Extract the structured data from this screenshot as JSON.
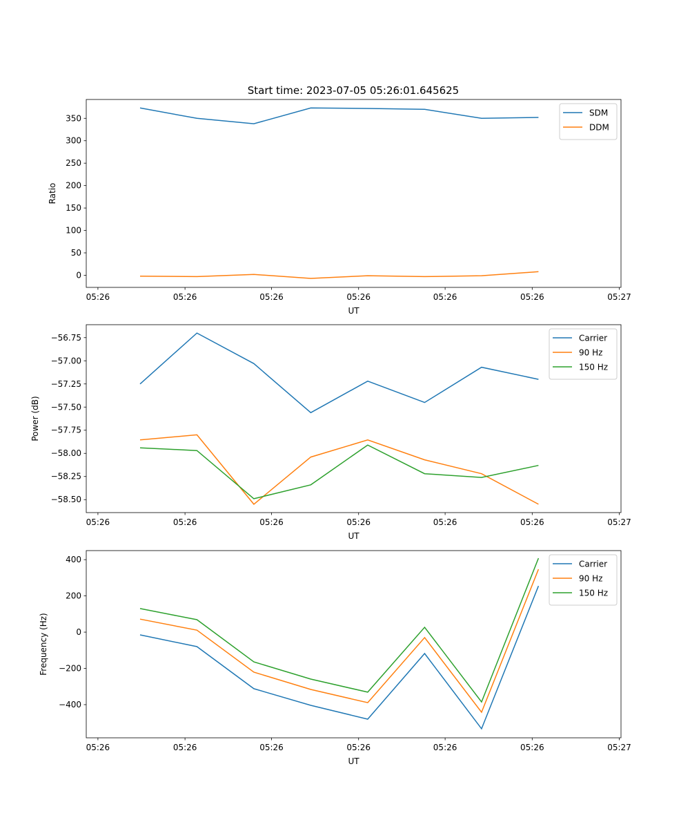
{
  "title": "Start time: 2023-07-05 05:26:01.645625",
  "chart_data": [
    {
      "type": "line",
      "xlabel": "UT",
      "ylabel": "Ratio",
      "x": [
        0,
        1,
        2,
        3,
        4,
        5,
        6,
        7
      ],
      "xlim": [
        -0.945,
        8.45
      ],
      "xticks": [
        -0.74,
        0.79,
        2.31,
        3.84,
        5.36,
        6.89,
        8.42
      ],
      "xticklabels": [
        "05:26",
        "05:26",
        "05:26",
        "05:26",
        "05:26",
        "05:26",
        "05:27"
      ],
      "ylim": [
        -27,
        392
      ],
      "yticks": [
        0,
        50,
        100,
        150,
        200,
        250,
        300,
        350
      ],
      "yticklabels": [
        "0",
        "50",
        "100",
        "150",
        "200",
        "250",
        "300",
        "350"
      ],
      "legend": "top-right",
      "series": [
        {
          "name": "SDM",
          "color": "#1f77b4",
          "values": [
            373,
            350,
            338,
            373,
            372,
            370,
            350,
            352
          ]
        },
        {
          "name": "DDM",
          "color": "#ff7f0e",
          "values": [
            -2,
            -3,
            2,
            -7,
            -1,
            -3,
            -1,
            8
          ]
        }
      ]
    },
    {
      "type": "line",
      "xlabel": "UT",
      "ylabel": "Power (dB)",
      "x": [
        0,
        1,
        2,
        3,
        4,
        5,
        6,
        7
      ],
      "xlim": [
        -0.945,
        8.45
      ],
      "xticks": [
        -0.74,
        0.79,
        2.31,
        3.84,
        5.36,
        6.89,
        8.42
      ],
      "xticklabels": [
        "05:26",
        "05:26",
        "05:26",
        "05:26",
        "05:26",
        "05:26",
        "05:27"
      ],
      "ylim": [
        -58.64,
        -56.61
      ],
      "yticks": [
        -58.5,
        -58.25,
        -58.0,
        -57.75,
        -57.5,
        -57.25,
        -57.0,
        -56.75
      ],
      "yticklabels": [
        "−58.50",
        "−58.25",
        "−58.00",
        "−57.75",
        "−57.50",
        "−57.25",
        "−57.00",
        "−56.75"
      ],
      "legend": "top-right",
      "series": [
        {
          "name": "Carrier",
          "color": "#1f77b4",
          "values": [
            -57.25,
            -56.7,
            -57.03,
            -57.56,
            -57.22,
            -57.45,
            -57.07,
            -57.2
          ]
        },
        {
          "name": "90 Hz",
          "color": "#ff7f0e",
          "values": [
            -57.855,
            -57.8,
            -58.55,
            -58.04,
            -57.855,
            -58.07,
            -58.22,
            -58.55
          ]
        },
        {
          "name": "150 Hz",
          "color": "#2ca02c",
          "values": [
            -57.94,
            -57.97,
            -58.49,
            -58.34,
            -57.91,
            -58.22,
            -58.26,
            -58.13
          ]
        }
      ]
    },
    {
      "type": "line",
      "xlabel": "UT",
      "ylabel": "Frequency (Hz)",
      "x": [
        0,
        1,
        2,
        3,
        4,
        5,
        6,
        7
      ],
      "xlim": [
        -0.945,
        8.45
      ],
      "xticks": [
        -0.74,
        0.79,
        2.31,
        3.84,
        5.36,
        6.89,
        8.42
      ],
      "xticklabels": [
        "05:26",
        "05:26",
        "05:26",
        "05:26",
        "05:26",
        "05:26",
        "05:27"
      ],
      "ylim": [
        -583,
        450
      ],
      "yticks": [
        -400,
        -200,
        0,
        200,
        400
      ],
      "yticklabels": [
        "−400",
        "−200",
        "0",
        "200",
        "400"
      ],
      "legend": "top-right",
      "series": [
        {
          "name": "Carrier",
          "color": "#1f77b4",
          "values": [
            -15,
            -80,
            -312,
            -404,
            -480,
            -118,
            -533,
            255
          ]
        },
        {
          "name": "90 Hz",
          "color": "#ff7f0e",
          "values": [
            72,
            11,
            -221,
            -316,
            -389,
            -30,
            -442,
            347
          ]
        },
        {
          "name": "150 Hz",
          "color": "#2ca02c",
          "values": [
            130,
            69,
            -164,
            -259,
            -331,
            27,
            -385,
            408
          ]
        }
      ]
    }
  ]
}
